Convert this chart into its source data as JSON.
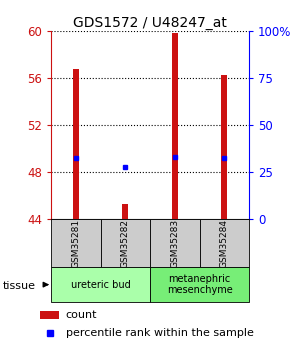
{
  "title": "GDS1572 / U48247_at",
  "samples": [
    "GSM35281",
    "GSM35282",
    "GSM35283",
    "GSM35284"
  ],
  "count_values": [
    56.8,
    45.3,
    59.8,
    56.3
  ],
  "count_base": 44.0,
  "percentile_values": [
    49.2,
    48.4,
    49.3,
    49.2
  ],
  "ylim_left": [
    44,
    60
  ],
  "yticks_left": [
    44,
    48,
    52,
    56,
    60
  ],
  "ylim_right": [
    0,
    100
  ],
  "ytick_labels_right": [
    "0",
    "25",
    "50",
    "75",
    "100%"
  ],
  "ytick_vals_right": [
    0,
    25,
    50,
    75,
    100
  ],
  "tissue_groups": [
    {
      "label": "ureteric bud",
      "samples": [
        0,
        1
      ],
      "color": "#aaffaa"
    },
    {
      "label": "metanephric\nmesenchyme",
      "samples": [
        2,
        3
      ],
      "color": "#77ee77"
    }
  ],
  "bar_color": "#cc1111",
  "percentile_color": "#0000ff",
  "bar_width": 0.12,
  "left_axis_color": "#cc1111",
  "right_axis_color": "#0000ff",
  "sample_box_color": "#cccccc",
  "legend_count_label": "count",
  "legend_pct_label": "percentile rank within the sample"
}
